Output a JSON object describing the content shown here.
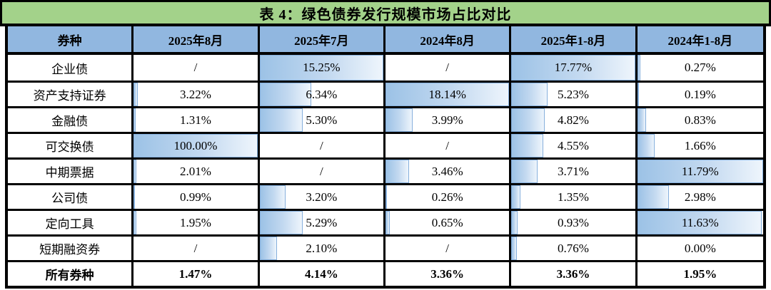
{
  "title": "表 4：绿色债券发行规模市场占比对比",
  "colors": {
    "title_bg": "#a3d28a",
    "header_bg": "#91b7e0",
    "bar_fill_start": "#9cc2e6",
    "bar_fill_end": "#eef5fc",
    "bar_border": "#85afdc",
    "grid_border": "#000000",
    "text": "#000000"
  },
  "table": {
    "columns": [
      "券种",
      "2025年8月",
      "2025年7月",
      "2024年8月",
      "2025年1-8月",
      "2024年1-8月"
    ],
    "column_max_values": [
      100.0,
      15.25,
      18.14,
      17.77,
      11.79
    ],
    "missing_marker": "/",
    "rows": [
      {
        "label": "企业债",
        "values": [
          "/",
          "15.25%",
          "/",
          "17.77%",
          "0.27%"
        ],
        "bold": false,
        "show_bars": true
      },
      {
        "label": "资产支持证券",
        "values": [
          "3.22%",
          "6.34%",
          "18.14%",
          "5.23%",
          "0.19%"
        ],
        "bold": false,
        "show_bars": true
      },
      {
        "label": "金融债",
        "values": [
          "1.31%",
          "5.30%",
          "3.99%",
          "4.82%",
          "0.83%"
        ],
        "bold": false,
        "show_bars": true
      },
      {
        "label": "可交换债",
        "values": [
          "100.00%",
          "/",
          "/",
          "4.55%",
          "1.66%"
        ],
        "bold": false,
        "show_bars": true
      },
      {
        "label": "中期票据",
        "values": [
          "2.01%",
          "/",
          "3.46%",
          "3.71%",
          "11.79%"
        ],
        "bold": false,
        "show_bars": true
      },
      {
        "label": "公司债",
        "values": [
          "0.99%",
          "3.20%",
          "0.26%",
          "1.35%",
          "2.98%"
        ],
        "bold": false,
        "show_bars": true
      },
      {
        "label": "定向工具",
        "values": [
          "1.95%",
          "5.29%",
          "0.65%",
          "0.93%",
          "11.63%"
        ],
        "bold": false,
        "show_bars": true
      },
      {
        "label": "短期融资券",
        "values": [
          "/",
          "2.10%",
          "/",
          "0.76%",
          "0.00%"
        ],
        "bold": false,
        "show_bars": true
      },
      {
        "label": "所有券种",
        "values": [
          "1.47%",
          "4.14%",
          "3.36%",
          "3.36%",
          "1.95%"
        ],
        "bold": true,
        "show_bars": false
      }
    ]
  },
  "chart_data": {
    "type": "table",
    "title": "表 4：绿色债券发行规模市场占比对比",
    "categories": [
      "企业债",
      "资产支持证券",
      "金融债",
      "可交换债",
      "中期票据",
      "公司债",
      "定向工具",
      "短期融资券",
      "所有券种"
    ],
    "series": [
      {
        "name": "2025年8月",
        "values": [
          null,
          3.22,
          1.31,
          100.0,
          2.01,
          0.99,
          1.95,
          null,
          1.47
        ]
      },
      {
        "name": "2025年7月",
        "values": [
          15.25,
          6.34,
          5.3,
          null,
          null,
          3.2,
          5.29,
          2.1,
          4.14
        ]
      },
      {
        "name": "2024年8月",
        "values": [
          null,
          18.14,
          3.99,
          null,
          3.46,
          0.26,
          0.65,
          null,
          3.36
        ]
      },
      {
        "name": "2025年1-8月",
        "values": [
          17.77,
          5.23,
          4.82,
          4.55,
          3.71,
          1.35,
          0.93,
          0.76,
          3.36
        ]
      },
      {
        "name": "2024年1-8月",
        "values": [
          0.27,
          0.19,
          0.83,
          1.66,
          11.79,
          2.98,
          11.63,
          0.0,
          1.95
        ]
      }
    ],
    "unit": "%",
    "layout_hints": {
      "data_bars": "per-column gradient data bars scaled to each column maximum",
      "missing_marker": "/",
      "total_row_bold_no_bars": "所有券种"
    }
  }
}
